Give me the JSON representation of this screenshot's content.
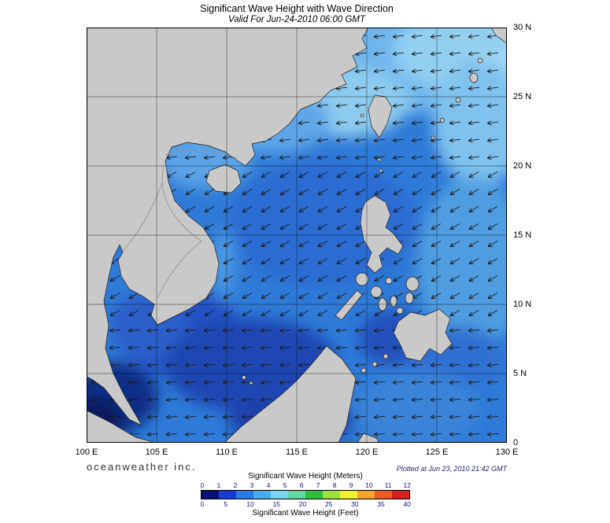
{
  "header": {
    "title": "Significant Wave Height with Wave Direction",
    "subtitle": "Valid For Jun-24-2010 06:00 GMT"
  },
  "axes": {
    "lat_labels": [
      "30 N",
      "25 N",
      "20 N",
      "15 N",
      "10 N",
      "5 N",
      "0"
    ],
    "lon_labels": [
      "100 E",
      "105 E",
      "110 E",
      "115 E",
      "120 E",
      "125 E",
      "130 E"
    ]
  },
  "footer": {
    "brand": "oceanweather inc.",
    "plotted": "Plotted at Jun 23, 2010 21:42 GMT"
  },
  "legend": {
    "meters_title": "Significant Wave Height (Meters)",
    "feet_title": "Significant Wave Height (Feet)",
    "meters_ticks": [
      "0",
      "1",
      "2",
      "3",
      "4",
      "5",
      "6",
      "7",
      "8",
      "9",
      "10",
      "11",
      "12"
    ],
    "feet_ticks": [
      "0",
      "5",
      "10",
      "15",
      "20",
      "25",
      "30",
      "35",
      "40"
    ],
    "colors": [
      "#070f77",
      "#1a3ad6",
      "#2a7ae8",
      "#46aef0",
      "#7dd4f0",
      "#62d6a0",
      "#2fbf3f",
      "#9fe03a",
      "#f2ef2e",
      "#f7a42a",
      "#f05a22",
      "#d61f1f"
    ]
  },
  "colors": {
    "land": "#c9c9c9",
    "ocean_base": "#2e7ad6",
    "ocean_calm": "#071f60",
    "grid": "#000000",
    "arrow": "#1a1a1a"
  }
}
